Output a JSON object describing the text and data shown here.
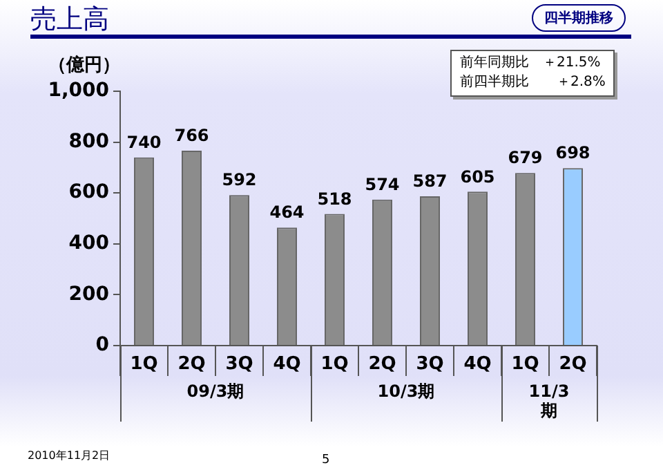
{
  "chart_data": {
    "type": "bar",
    "title": "売上高",
    "subtitle": "四半期推移",
    "ylabel": "（億円）",
    "categories": [
      "1Q",
      "2Q",
      "3Q",
      "4Q",
      "1Q",
      "2Q",
      "3Q",
      "4Q",
      "1Q",
      "2Q"
    ],
    "values": [
      740,
      766,
      592,
      464,
      518,
      574,
      587,
      605,
      679,
      698
    ],
    "colors": [
      "#8c8c8c",
      "#8c8c8c",
      "#8c8c8c",
      "#8c8c8c",
      "#8c8c8c",
      "#8c8c8c",
      "#8c8c8c",
      "#8c8c8c",
      "#8c8c8c",
      "#99ccff"
    ],
    "ylim": [
      0,
      1000
    ],
    "yticks": [
      0,
      200,
      400,
      600,
      800,
      {
        "value": 1000,
        "label": "1,000"
      }
    ],
    "grid": false,
    "legend": false,
    "data_labels": true,
    "annotations": [
      "前年同期比　＋21.5%",
      "前四半期比　　＋2.8%",
      "09/3期",
      "10/3期",
      "11/3\n期",
      "2010年11月2日",
      "5"
    ]
  }
}
